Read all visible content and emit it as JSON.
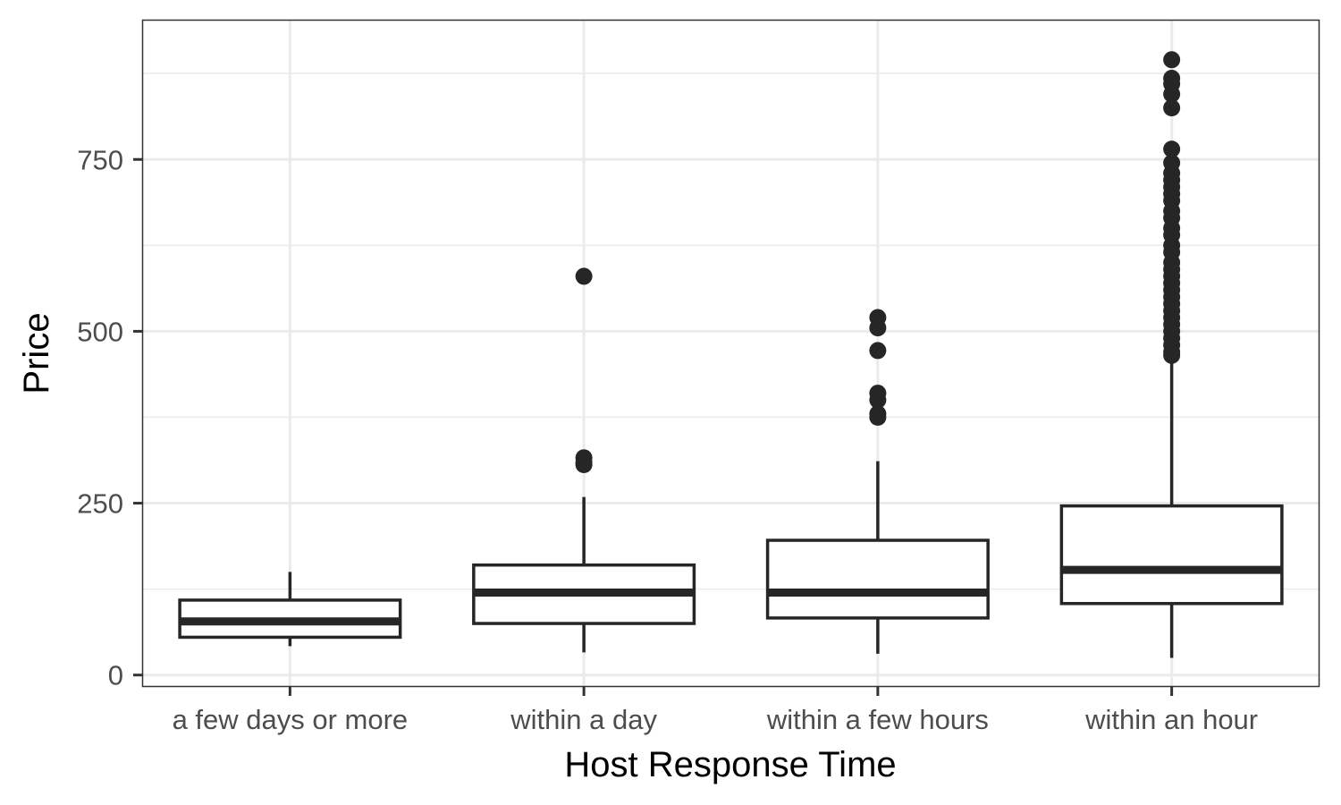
{
  "chart_data": {
    "type": "boxplot",
    "xlabel": "Host Response Time",
    "ylabel": "Price",
    "ylim": [
      -16,
      952
    ],
    "y_ticks": [
      0,
      250,
      500,
      750
    ],
    "y_minor_ticks": [
      125,
      375,
      625,
      875
    ],
    "grid": true,
    "legend": "none",
    "categories": [
      "a few days or more",
      "within a day",
      "within a few hours",
      "within an hour"
    ],
    "boxes": [
      {
        "category": "a few days or more",
        "whisker_low": 42,
        "q1": 55,
        "median": 78,
        "q3": 109,
        "whisker_high": 150,
        "outliers": []
      },
      {
        "category": "within a day",
        "whisker_low": 33,
        "q1": 75,
        "median": 120,
        "q3": 160,
        "whisker_high": 259,
        "outliers": [
          306,
          309,
          316,
          580
        ]
      },
      {
        "category": "within a few hours",
        "whisker_low": 31,
        "q1": 83,
        "median": 120,
        "q3": 196,
        "whisker_high": 311,
        "outliers": [
          375,
          380,
          400,
          410,
          472,
          505,
          520
        ]
      },
      {
        "category": "within an hour",
        "whisker_low": 25,
        "q1": 104,
        "median": 153,
        "q3": 246,
        "whisker_high": 460,
        "outliers": [
          465,
          470,
          480,
          490,
          500,
          510,
          520,
          530,
          540,
          550,
          560,
          570,
          580,
          590,
          600,
          615,
          625,
          640,
          650,
          665,
          675,
          690,
          700,
          710,
          720,
          730,
          745,
          765,
          825,
          845,
          860,
          868,
          895
        ]
      }
    ],
    "colors": {
      "box_stroke": "#262626",
      "box_fill": "#ffffff",
      "grid": "#ebebeb",
      "panel_border": "#333333",
      "tick_text": "#4d4d4d",
      "title_text": "#000000"
    }
  }
}
